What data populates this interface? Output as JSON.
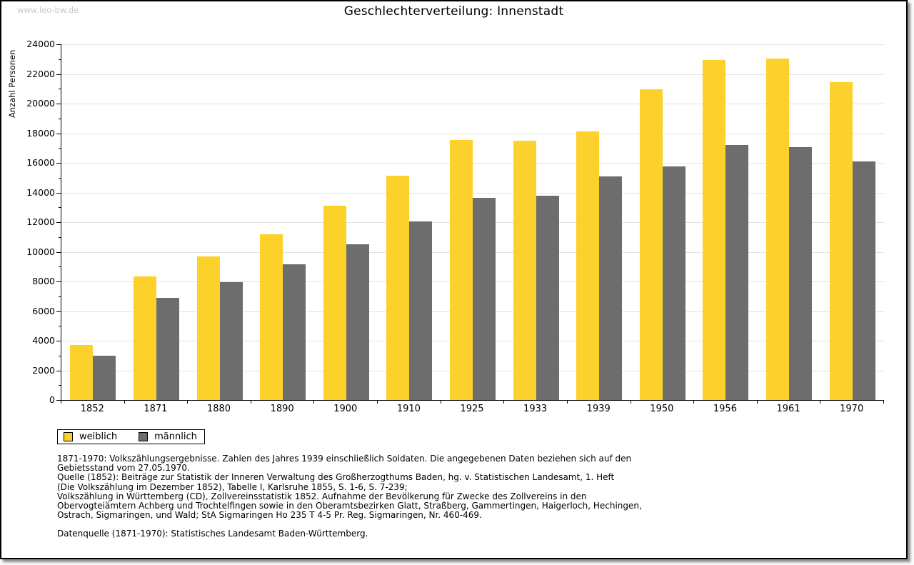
{
  "watermark": "www.leo-bw.de",
  "title": "Geschlechterverteilung: Innenstadt",
  "chart_data": {
    "type": "bar",
    "title": "Geschlechterverteilung: Innenstadt",
    "xlabel": "",
    "ylabel": "Anzahl Personen",
    "ylim": [
      0,
      24000
    ],
    "ytick_step": 2000,
    "yminor_step": 1000,
    "grid": "horizontal-major",
    "legend_position": "bottom-left",
    "categories": [
      "1852",
      "1871",
      "1880",
      "1890",
      "1900",
      "1910",
      "1925",
      "1933",
      "1939",
      "1950",
      "1956",
      "1961",
      "1970"
    ],
    "series": [
      {
        "name": "weiblich",
        "color": "#FCD12B",
        "values": [
          3700,
          8350,
          9700,
          11200,
          13100,
          15150,
          17550,
          17500,
          18100,
          20950,
          22950,
          23050,
          21450
        ]
      },
      {
        "name": "männlich",
        "color": "#6D6D6D",
        "values": [
          3000,
          6900,
          7950,
          9150,
          10500,
          12050,
          13650,
          13800,
          15100,
          15750,
          17200,
          17050,
          16100
        ]
      }
    ]
  },
  "footnotes": [
    "1871-1970: Volkszählungsergebnisse. Zahlen des Jahres 1939 einschließlich Soldaten. Die angegebenen Daten beziehen sich auf den",
    "Gebietsstand vom 27.05.1970.",
    "Quelle (1852): Beiträge zur Statistik der Inneren Verwaltung des Großherzogthums Baden, hg. v. Statistischen Landesamt, 1. Heft",
    "(Die Volkszählung im Dezember 1852), Tabelle I, Karlsruhe 1855, S. 1-6, S. 7-239;",
    "Volkszählung in Württemberg (CD), Zollvereinsstatistik 1852. Aufnahme der Bevölkerung für Zwecke des Zollvereins in den",
    "Obervogteiämtern Achberg und Trochtelfingen sowie in den Oberamtsbezirken Glatt, Straßberg, Gammertingen, Haigerloch, Hechingen,",
    "Ostrach, Sigmaringen, und Wald; StA Sigmaringen Ho 235 T 4-5 Pr. Reg. Sigmaringen, Nr. 460-469."
  ],
  "datasource": "Datenquelle (1871-1970): Statistisches Landesamt Baden-Württemberg."
}
